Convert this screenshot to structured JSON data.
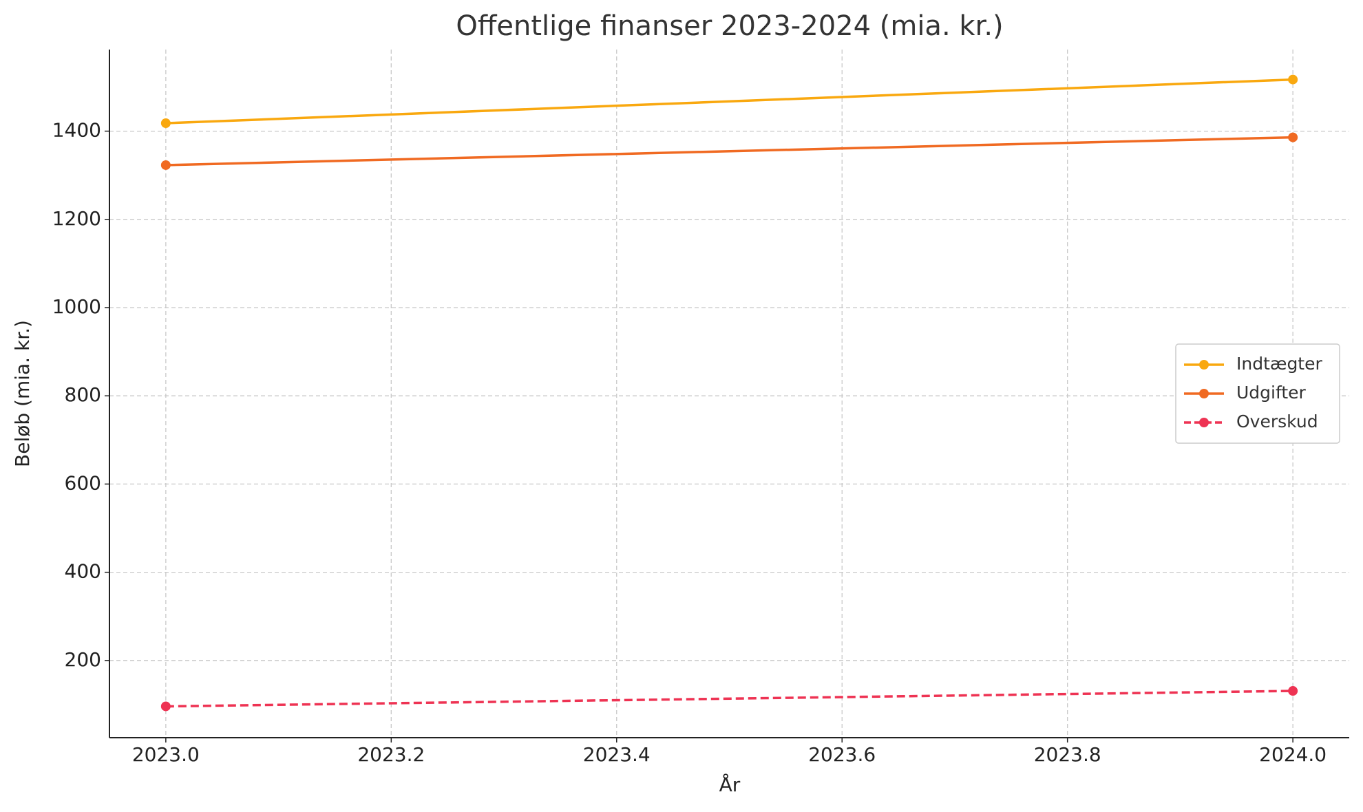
{
  "chart_data": {
    "type": "line",
    "title": "Offentlige finanser 2023-2024 (mia. kr.)",
    "x_label": "År",
    "y_label": "Beløb (mia. kr.)",
    "x": [
      2023,
      2024
    ],
    "series": [
      {
        "name": "Indtægter",
        "color": "#f9a80f",
        "values": [
          1418,
          1517
        ],
        "linestyle": "solid"
      },
      {
        "name": "Udgifter",
        "color": "#f06a22",
        "values": [
          1323,
          1386
        ],
        "linestyle": "solid"
      },
      {
        "name": "Overskud",
        "color": "#ee3353",
        "values": [
          96,
          131
        ],
        "linestyle": "dashed"
      }
    ],
    "xlim": [
      2022.95,
      2024.05
    ],
    "xticks": [
      {
        "value": 2023,
        "label": "2023.0"
      },
      2023.2,
      2023.4,
      2023.6,
      2023.8,
      {
        "value": 2024,
        "label": "2024.0"
      }
    ],
    "ylim": [
      25,
      1585
    ],
    "yticks": [
      200,
      400,
      600,
      800,
      1000,
      1200,
      1400
    ],
    "grid": true,
    "legend": "center right"
  }
}
